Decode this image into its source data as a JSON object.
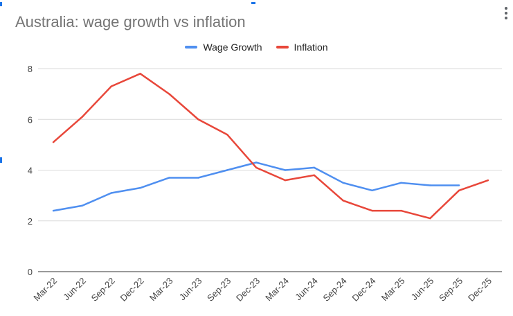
{
  "chart_data": {
    "type": "line",
    "title": "Australia: wage growth vs inflation",
    "xlabel": "",
    "ylabel": "",
    "ylim": [
      0,
      8
    ],
    "yticks": [
      0,
      2,
      4,
      6,
      8
    ],
    "grid": true,
    "legend_position": "top",
    "categories": [
      "Mar-22",
      "Jun-22",
      "Sep-22",
      "Dec-22",
      "Mar-23",
      "Jun-23",
      "Sep-23",
      "Dec-23",
      "Mar-24",
      "Jun-24",
      "Sep-24",
      "Dec-24",
      "Mar-25",
      "Jun-25",
      "Sep-25",
      "Dec-25"
    ],
    "series": [
      {
        "name": "Wage Growth",
        "color": "#4f8ff0",
        "values": [
          2.4,
          2.6,
          3.1,
          3.3,
          3.7,
          3.7,
          4.0,
          4.3,
          4.0,
          4.1,
          3.5,
          3.2,
          3.5,
          3.4,
          3.4,
          null
        ]
      },
      {
        "name": "Inflation",
        "color": "#e8473a",
        "values": [
          5.1,
          6.1,
          7.3,
          7.8,
          7.0,
          6.0,
          5.4,
          4.1,
          3.6,
          3.8,
          2.8,
          2.4,
          2.4,
          2.1,
          3.2,
          3.6
        ]
      }
    ]
  }
}
